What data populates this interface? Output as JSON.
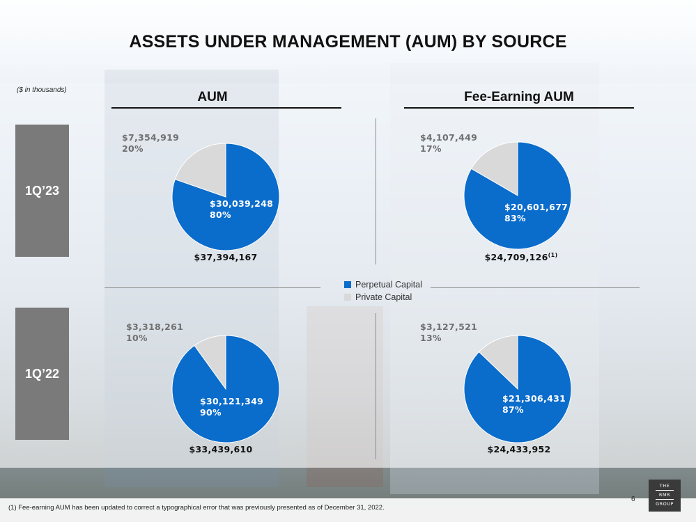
{
  "title": "ASSETS UNDER MANAGEMENT (AUM) BY SOURCE",
  "units_note": "($ in thousands)",
  "columns": {
    "aum": "AUM",
    "fee_earning": "Fee-Earning AUM"
  },
  "rows": {
    "q123": "1Q’23",
    "q122": "1Q’22"
  },
  "colors": {
    "perpetual": "#0a6ccb",
    "private": "#d9d9d9"
  },
  "legend": {
    "perpetual": "Perpetual Capital",
    "private": "Private Capital"
  },
  "footnote": "(1)    Fee-earning AUM has been updated to correct a typographical error that was previously presented as of December 31, 2022.",
  "page_number": "6",
  "logo": {
    "line1": "THE",
    "line2": "RMR",
    "line3": "GROUP"
  },
  "chart_data": [
    {
      "type": "pie",
      "period": "1Q’23",
      "measure": "AUM",
      "slices": [
        {
          "name": "Perpetual Capital",
          "value": 30039248,
          "label": "$30,039,248",
          "pct": "80%"
        },
        {
          "name": "Private Capital",
          "value": 7354919,
          "label": "$7,354,919",
          "pct": "20%"
        }
      ],
      "total": "$37,394,167",
      "total_note": ""
    },
    {
      "type": "pie",
      "period": "1Q’23",
      "measure": "Fee-Earning AUM",
      "slices": [
        {
          "name": "Perpetual Capital",
          "value": 20601677,
          "label": "$20,601,677",
          "pct": "83%"
        },
        {
          "name": "Private Capital",
          "value": 4107449,
          "label": "$4,107,449",
          "pct": "17%"
        }
      ],
      "total": "$24,709,126",
      "total_note": "(1)"
    },
    {
      "type": "pie",
      "period": "1Q’22",
      "measure": "AUM",
      "slices": [
        {
          "name": "Perpetual Capital",
          "value": 30121349,
          "label": "$30,121,349",
          "pct": "90%"
        },
        {
          "name": "Private Capital",
          "value": 3318261,
          "label": "$3,318,261",
          "pct": "10%"
        }
      ],
      "total": "$33,439,610",
      "total_note": ""
    },
    {
      "type": "pie",
      "period": "1Q’22",
      "measure": "Fee-Earning AUM",
      "slices": [
        {
          "name": "Perpetual Capital",
          "value": 21306431,
          "label": "$21,306,431",
          "pct": "87%"
        },
        {
          "name": "Private Capital",
          "value": 3127521,
          "label": "$3,127,521",
          "pct": "13%"
        }
      ],
      "total": "$24,433,952",
      "total_note": ""
    }
  ]
}
